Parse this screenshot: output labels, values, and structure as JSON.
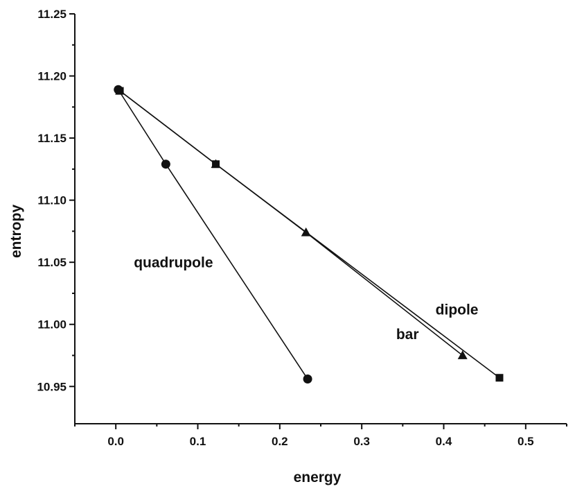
{
  "chart_data": {
    "type": "line",
    "xlabel": "energy",
    "ylabel": "entropy",
    "xlim": [
      -0.05,
      0.55
    ],
    "ylim": [
      10.92,
      11.25
    ],
    "xticks": [
      "0.0",
      "0.1",
      "0.2",
      "0.3",
      "0.4",
      "0.5"
    ],
    "yticks": [
      "10.95",
      "11.00",
      "11.05",
      "11.10",
      "11.15",
      "11.20",
      "11.25"
    ],
    "grid": false,
    "series": [
      {
        "name": "quadrupole",
        "marker": "circle",
        "points": [
          {
            "x": 0.003,
            "y": 11.189
          },
          {
            "x": 0.061,
            "y": 11.129
          },
          {
            "x": 0.234,
            "y": 10.956
          }
        ]
      },
      {
        "name": "dipole",
        "marker": "square",
        "points": [
          {
            "x": 0.005,
            "y": 11.188
          },
          {
            "x": 0.122,
            "y": 11.129
          },
          {
            "x": 0.468,
            "y": 10.957
          }
        ]
      },
      {
        "name": "bar",
        "marker": "triangle",
        "points": [
          {
            "x": 0.005,
            "y": 11.188
          },
          {
            "x": 0.122,
            "y": 11.129
          },
          {
            "x": 0.232,
            "y": 11.074
          },
          {
            "x": 0.423,
            "y": 10.975
          }
        ]
      }
    ],
    "annotations": [
      {
        "text": "quadrupole",
        "x": 0.022,
        "y": 11.046
      },
      {
        "text": "dipole",
        "x": 0.39,
        "y": 11.008
      },
      {
        "text": "bar",
        "x": 0.342,
        "y": 10.988
      }
    ]
  }
}
